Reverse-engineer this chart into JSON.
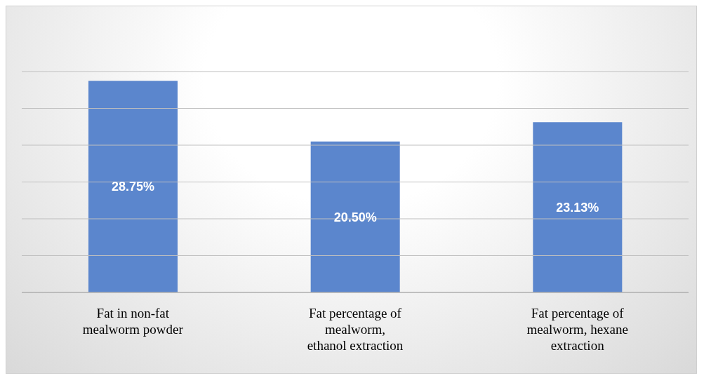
{
  "chart_data": {
    "type": "bar",
    "categories": [
      "Fat in non-fat\nmealworm powder",
      "Fat percentage of\nmealworm,\nethanol extraction",
      "Fat percentage of\nmealworm, hexane\nextraction"
    ],
    "values": [
      28.75,
      20.5,
      23.13
    ],
    "value_labels": [
      "28.75%",
      "20.50%",
      "23.13%"
    ],
    "color": "#5b86cd",
    "ylim": [
      0,
      30
    ],
    "yticks": [
      {
        "value": 0,
        "label": null
      },
      {
        "value": 5,
        "label": null
      },
      {
        "value": 10,
        "label": null
      },
      {
        "value": 15,
        "label": null
      },
      {
        "value": 20,
        "label": null
      },
      {
        "value": 25,
        "label": null
      },
      {
        "value": 30,
        "label": null
      }
    ],
    "tick_labels": "x",
    "grid": "y"
  }
}
